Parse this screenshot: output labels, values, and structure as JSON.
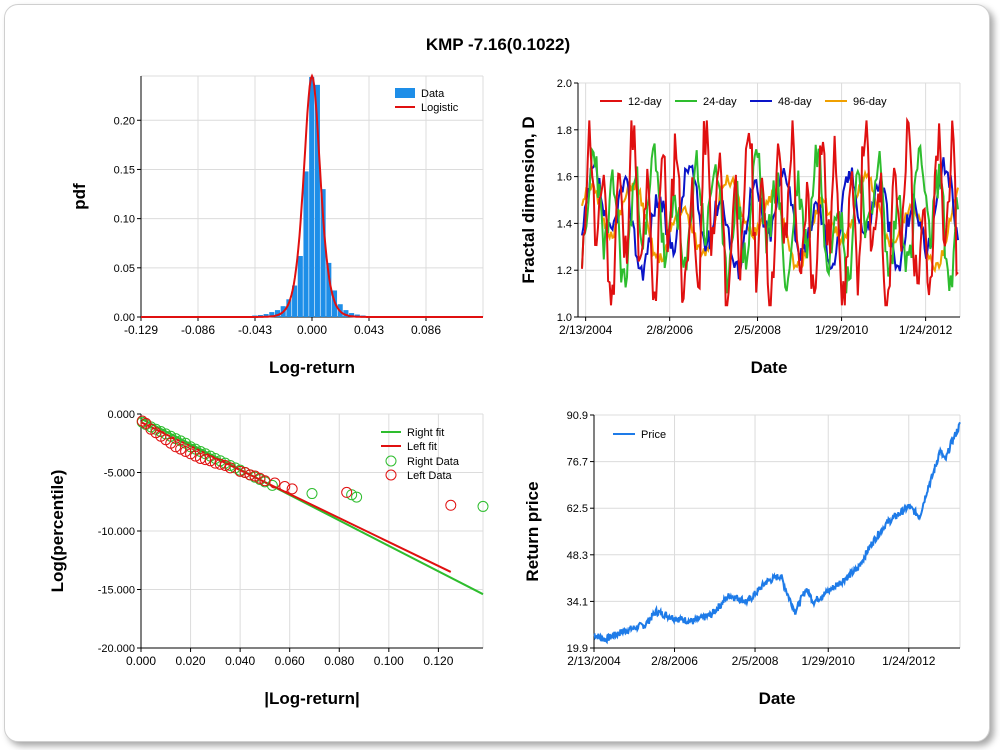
{
  "title": "KMP -7.16(0.1022)",
  "chart_data": [
    {
      "type": "bar",
      "id": "pdf",
      "xlabel": "Log-return",
      "ylabel": "pdf",
      "xlim": [
        -0.129,
        0.129
      ],
      "ylim": [
        0,
        0.245
      ],
      "xticks": [
        "-0.129",
        "-0.086",
        "-0.043",
        "0.000",
        "0.043",
        "0.086"
      ],
      "xtick_values": [
        -0.129,
        -0.086,
        -0.043,
        0.0,
        0.043,
        0.086
      ],
      "yticks": [
        "0.00",
        "0.05",
        "0.10",
        "0.15",
        "0.20"
      ],
      "ytick_values": [
        0.0,
        0.05,
        0.1,
        0.15,
        0.2
      ],
      "legend": [
        "Data",
        "Logistic"
      ],
      "legend_position": "top-right",
      "grid": true,
      "bin_width": 0.0043,
      "bins": [
        {
          "x": -0.0473,
          "v": 0.001
        },
        {
          "x": -0.043,
          "v": 0.0015
        },
        {
          "x": -0.0387,
          "v": 0.002
        },
        {
          "x": -0.0344,
          "v": 0.003
        },
        {
          "x": -0.0301,
          "v": 0.005
        },
        {
          "x": -0.0258,
          "v": 0.007
        },
        {
          "x": -0.0215,
          "v": 0.011
        },
        {
          "x": -0.0172,
          "v": 0.018
        },
        {
          "x": -0.0129,
          "v": 0.032
        },
        {
          "x": -0.0086,
          "v": 0.062
        },
        {
          "x": -0.0043,
          "v": 0.148
        },
        {
          "x": 0.0,
          "v": 0.244
        },
        {
          "x": 0.0043,
          "v": 0.236
        },
        {
          "x": 0.0086,
          "v": 0.13
        },
        {
          "x": 0.0129,
          "v": 0.055
        },
        {
          "x": 0.0172,
          "v": 0.027
        },
        {
          "x": 0.0215,
          "v": 0.013
        },
        {
          "x": 0.0258,
          "v": 0.007
        },
        {
          "x": 0.0301,
          "v": 0.004
        },
        {
          "x": 0.0344,
          "v": 0.0025
        },
        {
          "x": 0.0387,
          "v": 0.0015
        },
        {
          "x": 0.043,
          "v": 0.001
        }
      ],
      "fit": {
        "name": "Logistic",
        "peak": 0.245,
        "scale": 0.00415
      }
    },
    {
      "type": "line",
      "id": "fractal",
      "xlabel": "Date",
      "ylabel": "Fractal dimension, D",
      "ylim": [
        1.0,
        2.0
      ],
      "yticks": [
        "1.0",
        "1.2",
        "1.4",
        "1.6",
        "1.8",
        "2.0"
      ],
      "ytick_values": [
        1.0,
        1.2,
        1.4,
        1.6,
        1.8,
        2.0
      ],
      "xticks": [
        "2/13/2004",
        "2/8/2006",
        "2/5/2008",
        "1/29/2010",
        "1/24/2012"
      ],
      "legend_position": "top",
      "grid": true,
      "series": [
        {
          "name": "12-day",
          "color": "#e01010",
          "period": 10,
          "amp": 0.25,
          "noise": 0.12,
          "mean": 1.42,
          "seed": 11
        },
        {
          "name": "24-day",
          "color": "#2ebd2e",
          "period": 14,
          "amp": 0.18,
          "noise": 0.09,
          "mean": 1.43,
          "seed": 23
        },
        {
          "name": "48-day",
          "color": "#0a14c8",
          "period": 22,
          "amp": 0.14,
          "noise": 0.05,
          "mean": 1.42,
          "seed": 37
        },
        {
          "name": "96-day",
          "color": "#f0a000",
          "period": 32,
          "amp": 0.12,
          "noise": 0.03,
          "mean": 1.41,
          "seed": 51
        }
      ]
    },
    {
      "type": "scatter",
      "id": "tail",
      "xlabel": "|Log-return|",
      "ylabel": "Log(percentile)",
      "xlim": [
        0,
        0.138
      ],
      "ylim": [
        -20,
        0
      ],
      "xticks": [
        "0.000",
        "0.020",
        "0.040",
        "0.060",
        "0.080",
        "0.100",
        "0.120"
      ],
      "xtick_values": [
        0.0,
        0.02,
        0.04,
        0.06,
        0.08,
        0.1,
        0.12
      ],
      "yticks": [
        "0.000",
        "-5.000",
        "-10.000",
        "-15.000",
        "-20.000"
      ],
      "ytick_values": [
        0,
        -5,
        -10,
        -15,
        -20
      ],
      "legend": [
        "Right fit",
        "Left fit",
        "Right Data",
        "Left Data"
      ],
      "legend_position": "top-right",
      "grid": true,
      "right_fit": {
        "color": "#2ebd2e",
        "points": [
          [
            0.0,
            -0.4
          ],
          [
            0.138,
            -15.4
          ]
        ]
      },
      "left_fit": {
        "color": "#e01010",
        "points": [
          [
            0.0,
            -0.7
          ],
          [
            0.125,
            -13.5
          ]
        ]
      },
      "right_data": {
        "color": "#2ebd2e",
        "points": [
          [
            0.0005,
            -0.7
          ],
          [
            0.002,
            -0.9
          ],
          [
            0.004,
            -1.1
          ],
          [
            0.006,
            -1.3
          ],
          [
            0.008,
            -1.5
          ],
          [
            0.01,
            -1.7
          ],
          [
            0.012,
            -1.9
          ],
          [
            0.014,
            -2.1
          ],
          [
            0.016,
            -2.3
          ],
          [
            0.018,
            -2.5
          ],
          [
            0.02,
            -2.8
          ],
          [
            0.022,
            -3.0
          ],
          [
            0.024,
            -3.2
          ],
          [
            0.026,
            -3.4
          ],
          [
            0.028,
            -3.6
          ],
          [
            0.03,
            -3.8
          ],
          [
            0.032,
            -4.0
          ],
          [
            0.034,
            -4.2
          ],
          [
            0.036,
            -4.4
          ],
          [
            0.038,
            -4.6
          ],
          [
            0.04,
            -4.8
          ],
          [
            0.042,
            -5.0
          ],
          [
            0.044,
            -5.2
          ],
          [
            0.046,
            -5.4
          ],
          [
            0.048,
            -5.6
          ],
          [
            0.05,
            -5.8
          ],
          [
            0.053,
            -6.1
          ],
          [
            0.069,
            -6.8
          ],
          [
            0.085,
            -6.9
          ],
          [
            0.087,
            -7.1
          ],
          [
            0.138,
            -7.9
          ]
        ]
      },
      "left_data": {
        "color": "#e01010",
        "points": [
          [
            0.0005,
            -0.6
          ],
          [
            0.002,
            -0.8
          ],
          [
            0.004,
            -1.3
          ],
          [
            0.006,
            -1.6
          ],
          [
            0.008,
            -1.9
          ],
          [
            0.01,
            -2.2
          ],
          [
            0.012,
            -2.5
          ],
          [
            0.014,
            -2.8
          ],
          [
            0.016,
            -3.0
          ],
          [
            0.018,
            -3.2
          ],
          [
            0.02,
            -3.4
          ],
          [
            0.022,
            -3.6
          ],
          [
            0.024,
            -3.8
          ],
          [
            0.026,
            -3.9
          ],
          [
            0.028,
            -4.0
          ],
          [
            0.03,
            -4.2
          ],
          [
            0.032,
            -4.3
          ],
          [
            0.034,
            -4.4
          ],
          [
            0.036,
            -4.6
          ],
          [
            0.04,
            -4.9
          ],
          [
            0.042,
            -5.0
          ],
          [
            0.044,
            -5.2
          ],
          [
            0.046,
            -5.3
          ],
          [
            0.048,
            -5.5
          ],
          [
            0.05,
            -5.7
          ],
          [
            0.054,
            -5.9
          ],
          [
            0.058,
            -6.2
          ],
          [
            0.061,
            -6.4
          ],
          [
            0.083,
            -6.7
          ],
          [
            0.125,
            -7.8
          ]
        ]
      }
    },
    {
      "type": "line",
      "id": "price",
      "xlabel": "Date",
      "ylabel": "Return price",
      "ylim": [
        19.9,
        90.9
      ],
      "yticks": [
        "19.9",
        "34.1",
        "48.3",
        "62.5",
        "76.7",
        "90.9"
      ],
      "ytick_values": [
        19.9,
        34.1,
        48.3,
        62.5,
        76.7,
        90.9
      ],
      "xticks": [
        "2/13/2004",
        "2/8/2006",
        "2/5/2008",
        "1/29/2010",
        "1/24/2012"
      ],
      "legend_position": "top-left",
      "grid": true,
      "series": [
        {
          "name": "Price",
          "color": "#1e7be8",
          "anchors": [
            [
              0,
              24
            ],
            [
              0.03,
              22.5
            ],
            [
              0.08,
              25
            ],
            [
              0.14,
              27
            ],
            [
              0.17,
              31
            ],
            [
              0.22,
              29
            ],
            [
              0.27,
              28
            ],
            [
              0.32,
              30
            ],
            [
              0.37,
              36
            ],
            [
              0.42,
              34
            ],
            [
              0.47,
              40
            ],
            [
              0.51,
              42
            ],
            [
              0.53,
              36
            ],
            [
              0.55,
              31
            ],
            [
              0.58,
              38
            ],
            [
              0.6,
              34
            ],
            [
              0.65,
              38
            ],
            [
              0.72,
              44
            ],
            [
              0.76,
              52
            ],
            [
              0.8,
              58
            ],
            [
              0.86,
              63
            ],
            [
              0.89,
              60
            ],
            [
              0.91,
              68
            ],
            [
              0.93,
              74
            ],
            [
              0.945,
              80
            ],
            [
              0.96,
              77
            ],
            [
              0.975,
              82
            ],
            [
              1.0,
              88
            ],
            [
              1.0,
              90
            ]
          ]
        }
      ]
    }
  ]
}
